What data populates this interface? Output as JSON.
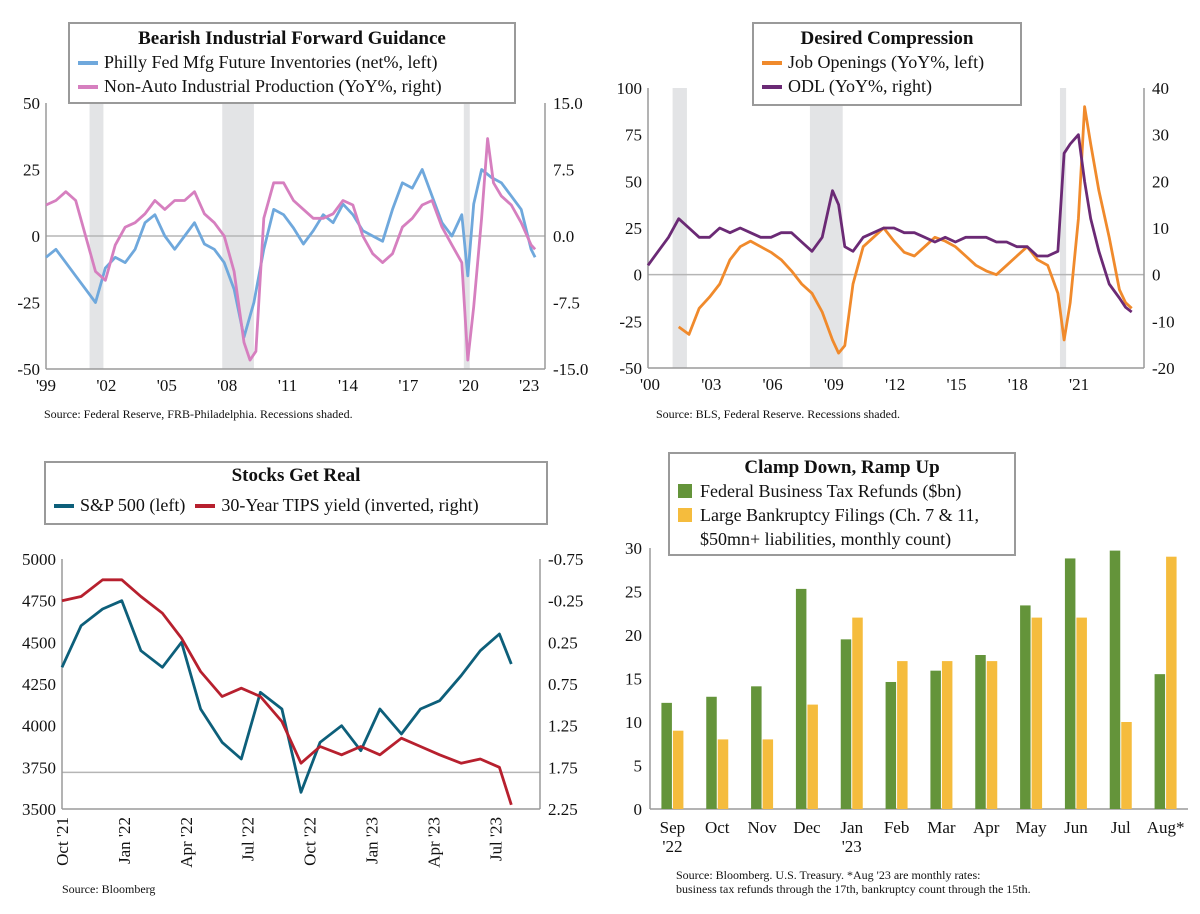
{
  "panels": {
    "p1": {
      "title": "Bearish Industrial Forward Guidance",
      "legend": [
        "Philly Fed Mfg Future Inventories (net%, left)",
        "Non-Auto Industrial Production (YoY%, right)"
      ],
      "source": "Source: Federal Reserve, FRB-Philadelphia. Recessions shaded."
    },
    "p2": {
      "title": "Desired Compression",
      "legend": [
        "Job Openings (YoY%, left)",
        "ODL (YoY%, right)"
      ],
      "source": "Source: BLS, Federal Reserve. Recessions shaded."
    },
    "p3": {
      "title": "Stocks Get Real",
      "legend": [
        "S&P 500 (left)",
        "30-Year TIPS yield (inverted, right)"
      ],
      "source": "Source: Bloomberg"
    },
    "p4": {
      "title": "Clamp Down, Ramp Up",
      "legend": [
        "Federal Business Tax Refunds ($bn)",
        "Large Bankruptcy Filings (Ch. 7 & 11,",
        "$50mn+ liabilities, monthly count)"
      ],
      "source_lines": [
        "Source: Bloomberg. U.S. Treasury. *Aug '23 are monthly rates:",
        "business tax refunds through the 17th, bankruptcy count through the 15th."
      ]
    }
  },
  "chart_data": [
    {
      "type": "line",
      "title": "Bearish Industrial Forward Guidance",
      "colors": [
        "#6fa8dc",
        "#d67fbf"
      ],
      "recession_shading": [
        [
          2001.2,
          2001.9
        ],
        [
          2007.9,
          2009.5
        ],
        [
          2020.1,
          2020.4
        ]
      ],
      "x_range": [
        1999,
        2024.2
      ],
      "x_ticks": [
        "'99",
        "'02",
        "'05",
        "'08",
        "'11",
        "'14",
        "'17",
        "'20",
        "'23"
      ],
      "y_left": {
        "range": [
          -50,
          50
        ],
        "ticks": [
          "50",
          "25",
          "0",
          "-25",
          "-50"
        ]
      },
      "y_right": {
        "range": [
          -15,
          15
        ],
        "ticks": [
          "15.0",
          "7.5",
          "0.0",
          "-7.5",
          "-15.0"
        ]
      },
      "series": [
        {
          "name": "Philly Fed Mfg Future Inventories (net%, left)",
          "axis": "left",
          "x": [
            1999,
            1999.5,
            2000,
            2000.5,
            2001,
            2001.5,
            2002,
            2002.5,
            2003,
            2003.5,
            2004,
            2004.5,
            2005,
            2005.5,
            2006,
            2006.5,
            2007,
            2007.5,
            2008,
            2008.5,
            2009,
            2009.5,
            2010,
            2010.5,
            2011,
            2011.5,
            2012,
            2012.5,
            2013,
            2013.5,
            2014,
            2014.5,
            2015,
            2015.5,
            2016,
            2016.5,
            2017,
            2017.5,
            2018,
            2018.5,
            2019,
            2019.5,
            2020,
            2020.3,
            2020.6,
            2021,
            2021.5,
            2022,
            2022.5,
            2023,
            2023.5,
            2023.7
          ],
          "y": [
            -8,
            -5,
            -10,
            -15,
            -20,
            -25,
            -12,
            -8,
            -10,
            -5,
            5,
            8,
            0,
            -5,
            0,
            5,
            -3,
            -5,
            -10,
            -20,
            -38,
            -25,
            -5,
            10,
            8,
            3,
            -3,
            2,
            8,
            5,
            12,
            8,
            2,
            0,
            -2,
            10,
            20,
            18,
            25,
            15,
            5,
            0,
            8,
            -15,
            12,
            25,
            22,
            20,
            15,
            10,
            -5,
            -8
          ]
        },
        {
          "name": "Non-Auto Industrial Production (YoY%, right)",
          "axis": "right",
          "x": [
            1999,
            1999.5,
            2000,
            2000.5,
            2001,
            2001.5,
            2002,
            2002.5,
            2003,
            2003.5,
            2004,
            2004.5,
            2005,
            2005.5,
            2006,
            2006.5,
            2007,
            2007.5,
            2008,
            2008.5,
            2009,
            2009.3,
            2009.6,
            2010,
            2010.5,
            2011,
            2011.5,
            2012,
            2012.5,
            2013,
            2013.5,
            2014,
            2014.5,
            2015,
            2015.5,
            2016,
            2016.5,
            2017,
            2017.5,
            2018,
            2018.5,
            2019,
            2019.5,
            2020,
            2020.3,
            2020.6,
            2021,
            2021.3,
            2021.6,
            2022,
            2022.5,
            2023,
            2023.5,
            2023.7
          ],
          "y": [
            3.5,
            4,
            5,
            4,
            0,
            -4,
            -5,
            -1,
            1,
            1.5,
            2.5,
            4,
            3,
            4,
            4,
            5,
            2.5,
            1.5,
            0,
            -4,
            -12,
            -14,
            -13,
            2,
            6,
            6,
            4,
            3,
            2,
            2,
            2.5,
            4,
            3.5,
            0,
            -2,
            -3,
            -2,
            1,
            2,
            3.5,
            4,
            1,
            -1,
            -3,
            -14,
            -8,
            2,
            11,
            6,
            4.5,
            3.5,
            1.5,
            -1,
            -1.5
          ]
        }
      ]
    },
    {
      "type": "line",
      "title": "Desired Compression",
      "colors": [
        "#f08a2c",
        "#6b2a75"
      ],
      "recession_shading": [
        [
          2001.2,
          2001.9
        ],
        [
          2007.9,
          2009.5
        ],
        [
          2020.1,
          2020.4
        ]
      ],
      "x_range": [
        2000,
        2024.2
      ],
      "x_ticks": [
        "'00",
        "'03",
        "'06",
        "'09",
        "'12",
        "'15",
        "'18",
        "'21"
      ],
      "y_left": {
        "range": [
          -50,
          100
        ],
        "ticks": [
          "100",
          "75",
          "50",
          "25",
          "0",
          "-25",
          "-50"
        ]
      },
      "y_right": {
        "range": [
          -20,
          40
        ],
        "ticks": [
          "40",
          "30",
          "20",
          "10",
          "0",
          "-10",
          "-20"
        ]
      },
      "series": [
        {
          "name": "Job Openings (YoY%, left)",
          "axis": "left",
          "x": [
            2001.5,
            2002,
            2002.5,
            2003,
            2003.5,
            2004,
            2004.5,
            2005,
            2005.5,
            2006,
            2006.5,
            2007,
            2007.5,
            2008,
            2008.5,
            2009,
            2009.3,
            2009.6,
            2010,
            2010.5,
            2011,
            2011.5,
            2012,
            2012.5,
            2013,
            2013.5,
            2014,
            2014.5,
            2015,
            2015.5,
            2016,
            2016.5,
            2017,
            2017.5,
            2018,
            2018.5,
            2019,
            2019.5,
            2020,
            2020.3,
            2020.6,
            2021,
            2021.3,
            2021.6,
            2022,
            2022.5,
            2023,
            2023.3,
            2023.6
          ],
          "y": [
            -28,
            -32,
            -18,
            -12,
            -5,
            8,
            15,
            18,
            15,
            12,
            8,
            2,
            -5,
            -10,
            -20,
            -35,
            -42,
            -38,
            -5,
            15,
            20,
            25,
            18,
            12,
            10,
            15,
            20,
            18,
            15,
            10,
            5,
            2,
            0,
            5,
            10,
            15,
            8,
            5,
            -10,
            -35,
            -15,
            30,
            90,
            70,
            45,
            20,
            -8,
            -15,
            -18
          ]
        },
        {
          "name": "ODL (YoY%, right)",
          "axis": "right",
          "x": [
            2000,
            2000.5,
            2001,
            2001.5,
            2002,
            2002.5,
            2003,
            2003.5,
            2004,
            2004.5,
            2005,
            2005.5,
            2006,
            2006.5,
            2007,
            2007.5,
            2008,
            2008.5,
            2009,
            2009.3,
            2009.6,
            2010,
            2010.5,
            2011,
            2011.5,
            2012,
            2012.5,
            2013,
            2013.5,
            2014,
            2014.5,
            2015,
            2015.5,
            2016,
            2016.5,
            2017,
            2017.5,
            2018,
            2018.5,
            2019,
            2019.5,
            2020,
            2020.3,
            2020.6,
            2021,
            2021.3,
            2021.6,
            2022,
            2022.5,
            2023,
            2023.3,
            2023.6
          ],
          "y": [
            2,
            5,
            8,
            12,
            10,
            8,
            8,
            10,
            9,
            10,
            9,
            8,
            8,
            9,
            9,
            7,
            5,
            8,
            18,
            15,
            6,
            5,
            8,
            9,
            10,
            10,
            9,
            9,
            8,
            7,
            8,
            7,
            8,
            8,
            8,
            7,
            7,
            6,
            6,
            4,
            4,
            5,
            26,
            28,
            30,
            20,
            12,
            5,
            -2,
            -5,
            -7,
            -8
          ]
        }
      ]
    },
    {
      "type": "line",
      "title": "Stocks Get Real",
      "colors": [
        "#0d5f7a",
        "#b7202e"
      ],
      "x_range": [
        2021.75,
        2023.75
      ],
      "x_ticks": [
        "Oct '21",
        "Jan '22",
        "Apr '22",
        "Jul '22",
        "Oct '22",
        "Jan '23",
        "Apr '23",
        "Jul '23"
      ],
      "y_left": {
        "range": [
          3500,
          5000
        ],
        "ticks": [
          "5000",
          "4750",
          "4500",
          "4250",
          "4000",
          "3750",
          "3500"
        ]
      },
      "y_right": {
        "range": [
          -0.75,
          2.25
        ],
        "inverted": true,
        "ticks": [
          "-0.75",
          "-0.25",
          "0.25",
          "0.75",
          "1.25",
          "1.75",
          "2.25"
        ]
      },
      "series": [
        {
          "name": "S&P 500 (left)",
          "axis": "left",
          "x": [
            2021.75,
            2021.83,
            2021.92,
            2022.0,
            2022.08,
            2022.17,
            2022.25,
            2022.33,
            2022.42,
            2022.5,
            2022.58,
            2022.67,
            2022.75,
            2022.83,
            2022.92,
            2023.0,
            2023.08,
            2023.17,
            2023.25,
            2023.33,
            2023.42,
            2023.5,
            2023.58,
            2023.63
          ],
          "y": [
            4350,
            4600,
            4700,
            4750,
            4450,
            4350,
            4500,
            4100,
            3900,
            3800,
            4200,
            4100,
            3600,
            3900,
            4000,
            3850,
            4100,
            3950,
            4100,
            4150,
            4300,
            4450,
            4550,
            4370
          ]
        },
        {
          "name": "30-Year TIPS yield (inverted, right)",
          "axis": "right",
          "x": [
            2021.75,
            2021.83,
            2021.92,
            2022.0,
            2022.08,
            2022.17,
            2022.25,
            2022.33,
            2022.42,
            2022.5,
            2022.58,
            2022.67,
            2022.75,
            2022.83,
            2022.92,
            2023.0,
            2023.08,
            2023.17,
            2023.25,
            2023.33,
            2023.42,
            2023.5,
            2023.58,
            2023.63
          ],
          "y": [
            -0.25,
            -0.3,
            -0.5,
            -0.5,
            -0.3,
            -0.1,
            0.2,
            0.6,
            0.9,
            0.8,
            0.9,
            1.2,
            1.7,
            1.5,
            1.6,
            1.5,
            1.6,
            1.4,
            1.5,
            1.6,
            1.7,
            1.65,
            1.75,
            2.2
          ]
        }
      ]
    },
    {
      "type": "bar",
      "title": "Clamp Down, Ramp Up",
      "colors": [
        "#64943a",
        "#f5bc3d"
      ],
      "categories": [
        "Sep '22",
        "Oct",
        "Nov",
        "Dec",
        "Jan '23",
        "Feb",
        "Mar",
        "Apr",
        "May",
        "Jun",
        "Jul",
        "Aug*"
      ],
      "category_labels": [
        [
          "Sep",
          "'22"
        ],
        [
          "Oct"
        ],
        [
          "Nov"
        ],
        [
          "Dec"
        ],
        [
          "Jan",
          "'23"
        ],
        [
          "Feb"
        ],
        [
          "Mar"
        ],
        [
          "Apr"
        ],
        [
          "May"
        ],
        [
          "Jun"
        ],
        [
          "Jul"
        ],
        [
          "Aug*"
        ]
      ],
      "ylim": [
        0,
        30
      ],
      "y_ticks": [
        "30",
        "25",
        "20",
        "15",
        "10",
        "5",
        "0"
      ],
      "series": [
        {
          "name": "Federal Business Tax Refunds ($bn)",
          "values": [
            12.2,
            12.9,
            14.1,
            25.3,
            19.5,
            14.6,
            15.9,
            17.7,
            23.4,
            28.8,
            29.7,
            15.5
          ]
        },
        {
          "name": "Large Bankruptcy Filings (Ch. 7 & 11, $50mn+ liabilities, monthly count)",
          "values": [
            9,
            8,
            8,
            12,
            22,
            17,
            17,
            17,
            22,
            22,
            10,
            29
          ]
        }
      ]
    }
  ]
}
